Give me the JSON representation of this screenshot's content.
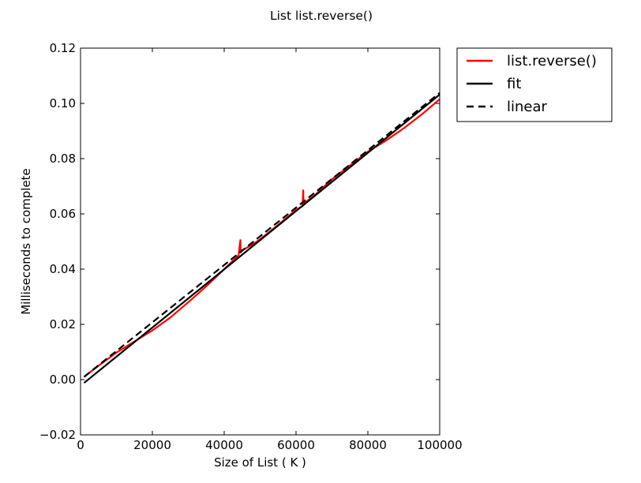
{
  "chart_data": {
    "type": "line",
    "title": "List list.reverse()",
    "xlabel": "Size of List ( K )",
    "ylabel": "Milliseconds to complete",
    "xlim": [
      0,
      100000
    ],
    "ylim": [
      -0.02,
      0.12
    ],
    "xticks": [
      0,
      20000,
      40000,
      60000,
      80000,
      100000
    ],
    "xtick_labels": [
      "0",
      "20000",
      "40000",
      "60000",
      "80000",
      "100000"
    ],
    "yticks": [
      -0.02,
      0.0,
      0.02,
      0.04,
      0.06,
      0.08,
      0.1,
      0.12
    ],
    "ytick_labels": [
      "−0.02",
      "0.00",
      "0.02",
      "0.04",
      "0.06",
      "0.08",
      "0.10",
      "0.12"
    ],
    "grid": false,
    "legend_position": "outside-top-right",
    "series": [
      {
        "name": "list.reverse()",
        "color": "#ff0000",
        "style": "solid",
        "x": [
          1000,
          5000,
          10000,
          15000,
          20000,
          25000,
          28000,
          30000,
          35000,
          38000,
          42000,
          44000,
          44500,
          44600,
          45000,
          48000,
          50000,
          55000,
          60000,
          61800,
          62000,
          62100,
          62400,
          65000,
          70000,
          75000,
          80000,
          85000,
          90000,
          95000,
          100000
        ],
        "y": [
          0.001,
          0.005,
          0.0098,
          0.0138,
          0.0178,
          0.0225,
          0.0258,
          0.028,
          0.0338,
          0.0375,
          0.0425,
          0.045,
          0.0505,
          0.046,
          0.0468,
          0.049,
          0.0508,
          0.056,
          0.0615,
          0.0628,
          0.0685,
          0.0632,
          0.064,
          0.0665,
          0.0725,
          0.0775,
          0.0825,
          0.0865,
          0.091,
          0.096,
          0.1015
        ]
      },
      {
        "name": "fit",
        "color": "#000000",
        "style": "solid",
        "x": [
          1000,
          100000
        ],
        "y": [
          -0.0012,
          0.1032
        ]
      },
      {
        "name": "linear",
        "color": "#000000",
        "style": "dashed",
        "x": [
          1000,
          100000
        ],
        "y": [
          0.001,
          0.1038
        ]
      }
    ]
  }
}
